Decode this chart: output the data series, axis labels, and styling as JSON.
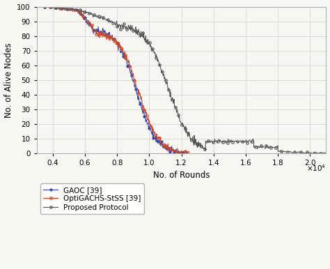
{
  "xlabel": "No. of Rounds",
  "ylabel": "No. of Alive Nodes",
  "xlim": [
    3000,
    21000
  ],
  "ylim": [
    0,
    100
  ],
  "xticks": [
    4000,
    6000,
    8000,
    10000,
    12000,
    14000,
    16000,
    18000,
    20000
  ],
  "yticks": [
    0,
    10,
    20,
    30,
    40,
    50,
    60,
    70,
    80,
    90,
    100
  ],
  "scale_factor": 10000,
  "bg_color": "#f7f7f2",
  "grid_color": "#d0d0d0",
  "series": {
    "GAOC": {
      "label": "GAOC [39]",
      "color": "#3344bb",
      "marker": "o",
      "markersize": 2.5,
      "linewidth": 0.8
    },
    "OptiGACHS": {
      "label": "OptiGACHS-StSS [39]",
      "color": "#cc4422",
      "marker": "o",
      "markersize": 2.5,
      "linewidth": 0.8
    },
    "Proposed": {
      "label": "Proposed Protocol",
      "color": "#555555",
      "marker": "o",
      "markersize": 2.5,
      "linewidth": 0.8
    }
  }
}
